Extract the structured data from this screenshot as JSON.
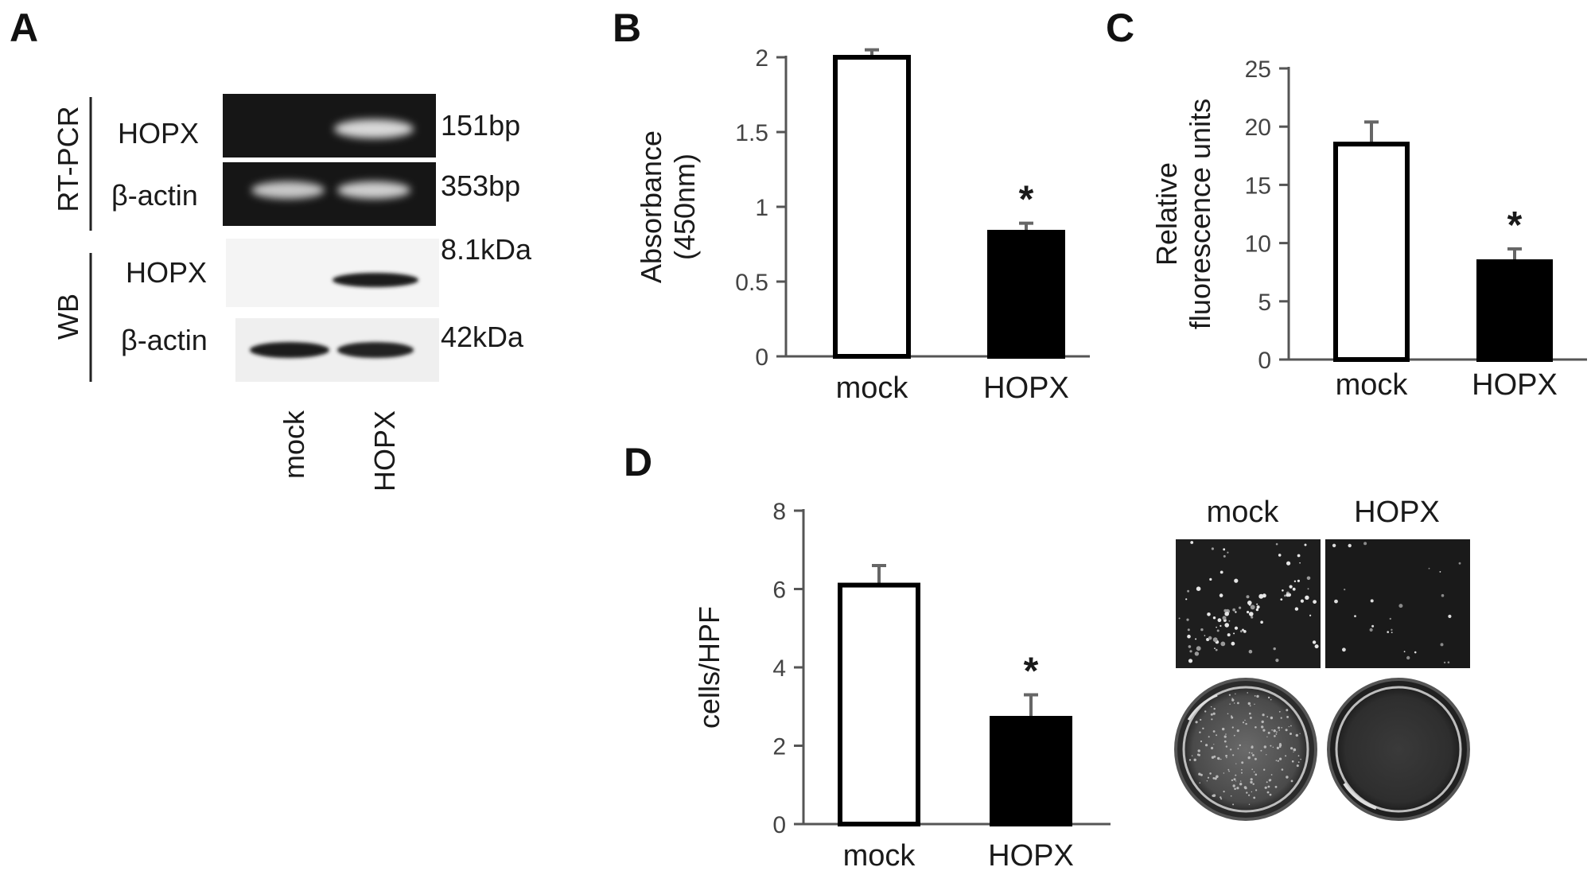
{
  "panels": {
    "A": {
      "letter": "A",
      "rtpcr_label": "RT-PCR",
      "wb_label": "WB",
      "gel_rows": [
        "HOPX",
        "β-actin"
      ],
      "gel_sizes": [
        "151bp",
        "353bp"
      ],
      "wb_rows": [
        "HOPX",
        "β-actin"
      ],
      "wb_sizes": [
        "8.1kDa",
        "42kDa"
      ],
      "lanes": [
        "mock",
        "HOPX"
      ]
    },
    "B": {
      "letter": "B"
    },
    "C": {
      "letter": "C"
    },
    "D": {
      "letter": "D",
      "image_labels": [
        "mock",
        "HOPX"
      ]
    }
  },
  "chart_data": [
    {
      "panel": "B",
      "type": "bar",
      "categories": [
        "mock",
        "HOPX"
      ],
      "values": [
        2.0,
        0.83
      ],
      "errors": [
        0.05,
        0.06
      ],
      "bar_colors": [
        "#ffffff",
        "#000000"
      ],
      "significance": [
        "",
        "*"
      ],
      "ylabel": [
        "Absorbance",
        "(450nm)"
      ],
      "ylim": [
        0,
        2
      ],
      "yticks": [
        0,
        0.5,
        1,
        1.5,
        2
      ],
      "ytick_labels": [
        "0",
        "0.5",
        "1",
        "1.5",
        "2"
      ]
    },
    {
      "panel": "C",
      "type": "bar",
      "categories": [
        "mock",
        "HOPX"
      ],
      "values": [
        18.5,
        8.4
      ],
      "errors": [
        1.9,
        1.1
      ],
      "bar_colors": [
        "#ffffff",
        "#000000"
      ],
      "significance": [
        "",
        "*"
      ],
      "ylabel": [
        "Relative",
        "fluorescence units"
      ],
      "ylim": [
        0,
        25
      ],
      "yticks": [
        0,
        5,
        10,
        15,
        20,
        25
      ],
      "ytick_labels": [
        "0",
        "5",
        "10",
        "15",
        "20",
        "25"
      ]
    },
    {
      "panel": "D",
      "type": "bar",
      "categories": [
        "mock",
        "HOPX"
      ],
      "values": [
        6.1,
        2.7
      ],
      "errors": [
        0.5,
        0.6
      ],
      "bar_colors": [
        "#ffffff",
        "#000000"
      ],
      "significance": [
        "",
        "*"
      ],
      "ylabel": [
        "cells/HPF"
      ],
      "ylim": [
        0,
        8
      ],
      "yticks": [
        0,
        2,
        4,
        6,
        8
      ],
      "ytick_labels": [
        "0",
        "2",
        "4",
        "6",
        "8"
      ]
    }
  ]
}
